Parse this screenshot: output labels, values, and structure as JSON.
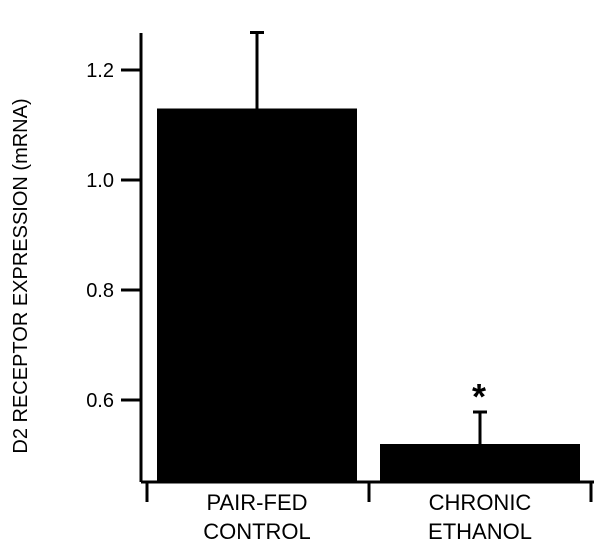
{
  "chart_data": {
    "type": "bar",
    "title": "",
    "xlabel": "",
    "ylabel": "D2 RECEPTOR EXPRESSION (mRNA)",
    "categories": [
      "PAIR-FED CONTROL",
      "CHRONIC ETHANOL"
    ],
    "category_lines": [
      [
        "PAIR-FED",
        "CONTROL"
      ],
      [
        "CHRONIC",
        "ETHANOL"
      ]
    ],
    "values": [
      1.13,
      0.52
    ],
    "error_upper": [
      0.14,
      0.06
    ],
    "error_bar_tops": [
      1.27,
      0.58
    ],
    "significance": [
      "",
      "*"
    ],
    "ylim": [
      0.45,
      1.3
    ],
    "yticks": [
      0.6,
      0.8,
      1.0,
      1.2
    ],
    "ytick_labels": [
      "0.6",
      "0.8",
      "1.0",
      "1.2"
    ],
    "grid": false,
    "legend": null,
    "bar_color": "#000000"
  }
}
